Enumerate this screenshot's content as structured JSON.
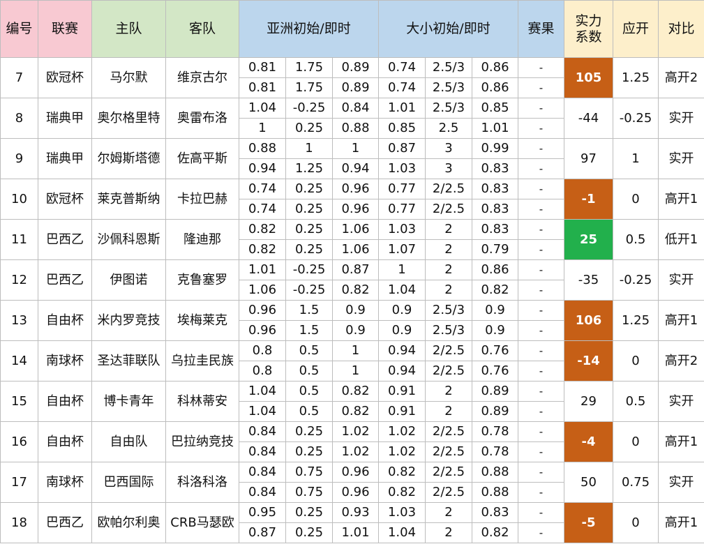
{
  "headers": {
    "no": "编号",
    "league": "联赛",
    "home": "主队",
    "away": "客队",
    "asia": "亚洲初始/即时",
    "ou": "大小初始/即时",
    "result": "赛果",
    "power_line1": "实力",
    "power_line2": "系数",
    "line": "应开",
    "compare": "对比"
  },
  "colors": {
    "header_pink": "#f8c9d2",
    "header_green": "#d3e7c6",
    "header_blue": "#bcd6ed",
    "header_yellow": "#fdefcb",
    "power_orange": "#c65f16",
    "power_green": "#22b04c"
  },
  "rows": [
    {
      "no": "7",
      "league": "欧冠杯",
      "home": "马尔默",
      "away": "维京古尔",
      "init": {
        "a1": "0.81",
        "a2": "1.75",
        "a3": "0.89",
        "o1": "0.74",
        "o2": "2.5/3",
        "o3": "0.86",
        "res": "-"
      },
      "live": {
        "a1": "0.81",
        "a2": "1.75",
        "a3": "0.89",
        "o1": "0.74",
        "o2": "2.5/3",
        "o3": "0.86",
        "res": "-"
      },
      "power": "105",
      "power_hl": "orange",
      "line": "1.25",
      "compare": "高开2"
    },
    {
      "no": "8",
      "league": "瑞典甲",
      "home": "奥尔格里特",
      "away": "奥雷布洛",
      "init": {
        "a1": "1.04",
        "a2": "-0.25",
        "a3": "0.84",
        "o1": "1.01",
        "o2": "2.5/3",
        "o3": "0.85",
        "res": "-"
      },
      "live": {
        "a1": "1",
        "a2": "0.25",
        "a3": "0.88",
        "o1": "0.85",
        "o2": "2.5",
        "o3": "1.01",
        "res": "-"
      },
      "power": "-44",
      "power_hl": "",
      "line": "-0.25",
      "compare": "实开"
    },
    {
      "no": "9",
      "league": "瑞典甲",
      "home": "尔姆斯塔德",
      "away": "佐高平斯",
      "init": {
        "a1": "0.88",
        "a2": "1",
        "a3": "1",
        "o1": "0.87",
        "o2": "3",
        "o3": "0.99",
        "res": "-"
      },
      "live": {
        "a1": "0.94",
        "a2": "1.25",
        "a3": "0.94",
        "o1": "1.03",
        "o2": "3",
        "o3": "0.83",
        "res": "-"
      },
      "power": "97",
      "power_hl": "",
      "line": "1",
      "compare": "实开"
    },
    {
      "no": "10",
      "league": "欧冠杯",
      "home": "莱克普斯纳",
      "away": "卡拉巴赫",
      "init": {
        "a1": "0.74",
        "a2": "0.25",
        "a3": "0.96",
        "o1": "0.77",
        "o2": "2/2.5",
        "o3": "0.83",
        "res": "-"
      },
      "live": {
        "a1": "0.74",
        "a2": "0.25",
        "a3": "0.96",
        "o1": "0.77",
        "o2": "2/2.5",
        "o3": "0.83",
        "res": "-"
      },
      "power": "-1",
      "power_hl": "orange",
      "line": "0",
      "compare": "高开1"
    },
    {
      "no": "11",
      "league": "巴西乙",
      "home": "沙佩科恩斯",
      "away": "隆迪那",
      "init": {
        "a1": "0.82",
        "a2": "0.25",
        "a3": "1.06",
        "o1": "1.03",
        "o2": "2",
        "o3": "0.83",
        "res": "-"
      },
      "live": {
        "a1": "0.82",
        "a2": "0.25",
        "a3": "1.06",
        "o1": "1.07",
        "o2": "2",
        "o3": "0.79",
        "res": "-"
      },
      "power": "25",
      "power_hl": "green",
      "line": "0.5",
      "compare": "低开1"
    },
    {
      "no": "12",
      "league": "巴西乙",
      "home": "伊图诺",
      "away": "克鲁塞罗",
      "init": {
        "a1": "1.01",
        "a2": "-0.25",
        "a3": "0.87",
        "o1": "1",
        "o2": "2",
        "o3": "0.86",
        "res": "-"
      },
      "live": {
        "a1": "1.06",
        "a2": "-0.25",
        "a3": "0.82",
        "o1": "1.04",
        "o2": "2",
        "o3": "0.82",
        "res": "-"
      },
      "power": "-35",
      "power_hl": "",
      "line": "-0.25",
      "compare": "实开"
    },
    {
      "no": "13",
      "league": "自由杯",
      "home": "米内罗竞技",
      "away": "埃梅莱克",
      "init": {
        "a1": "0.96",
        "a2": "1.5",
        "a3": "0.9",
        "o1": "0.9",
        "o2": "2.5/3",
        "o3": "0.9",
        "res": "-"
      },
      "live": {
        "a1": "0.96",
        "a2": "1.5",
        "a3": "0.9",
        "o1": "0.9",
        "o2": "2.5/3",
        "o3": "0.9",
        "res": "-"
      },
      "power": "106",
      "power_hl": "orange",
      "line": "1.25",
      "compare": "高开1"
    },
    {
      "no": "14",
      "league": "南球杯",
      "home": "圣达菲联队",
      "away": "乌拉圭民族",
      "init": {
        "a1": "0.8",
        "a2": "0.5",
        "a3": "1",
        "o1": "0.94",
        "o2": "2/2.5",
        "o3": "0.76",
        "res": "-"
      },
      "live": {
        "a1": "0.8",
        "a2": "0.5",
        "a3": "1",
        "o1": "0.94",
        "o2": "2/2.5",
        "o3": "0.76",
        "res": "-"
      },
      "power": "-14",
      "power_hl": "orange",
      "line": "0",
      "compare": "高开2"
    },
    {
      "no": "15",
      "league": "自由杯",
      "home": "博卡青年",
      "away": "科林蒂安",
      "init": {
        "a1": "1.04",
        "a2": "0.5",
        "a3": "0.82",
        "o1": "0.91",
        "o2": "2",
        "o3": "0.89",
        "res": "-"
      },
      "live": {
        "a1": "1.04",
        "a2": "0.5",
        "a3": "0.82",
        "o1": "0.91",
        "o2": "2",
        "o3": "0.89",
        "res": "-"
      },
      "power": "29",
      "power_hl": "",
      "line": "0.5",
      "compare": "实开"
    },
    {
      "no": "16",
      "league": "自由杯",
      "home": "自由队",
      "away": "巴拉纳竞技",
      "init": {
        "a1": "0.84",
        "a2": "0.25",
        "a3": "1.02",
        "o1": "1.02",
        "o2": "2/2.5",
        "o3": "0.78",
        "res": "-"
      },
      "live": {
        "a1": "0.84",
        "a2": "0.25",
        "a3": "1.02",
        "o1": "1.02",
        "o2": "2/2.5",
        "o3": "0.78",
        "res": "-"
      },
      "power": "-4",
      "power_hl": "orange",
      "line": "0",
      "compare": "高开1"
    },
    {
      "no": "17",
      "league": "南球杯",
      "home": "巴西国际",
      "away": "科洛科洛",
      "init": {
        "a1": "0.84",
        "a2": "0.75",
        "a3": "0.96",
        "o1": "0.82",
        "o2": "2/2.5",
        "o3": "0.88",
        "res": "-"
      },
      "live": {
        "a1": "0.84",
        "a2": "0.75",
        "a3": "0.96",
        "o1": "0.82",
        "o2": "2/2.5",
        "o3": "0.88",
        "res": "-"
      },
      "power": "50",
      "power_hl": "",
      "line": "0.75",
      "compare": "实开"
    },
    {
      "no": "18",
      "league": "巴西乙",
      "home": "欧帕尔利奥",
      "away": "CRB马瑟欧",
      "init": {
        "a1": "0.95",
        "a2": "0.25",
        "a3": "0.93",
        "o1": "1.03",
        "o2": "2",
        "o3": "0.83",
        "res": "-"
      },
      "live": {
        "a1": "0.87",
        "a2": "0.25",
        "a3": "1.01",
        "o1": "1.04",
        "o2": "2",
        "o3": "0.82",
        "res": "-"
      },
      "power": "-5",
      "power_hl": "orange",
      "line": "0",
      "compare": "高开1"
    }
  ]
}
